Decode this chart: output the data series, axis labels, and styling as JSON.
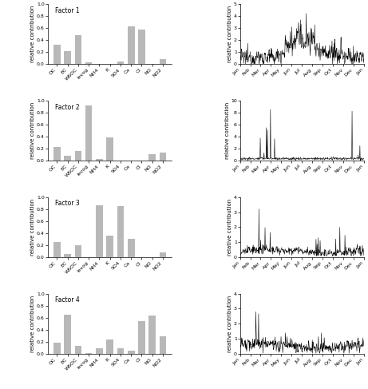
{
  "categories": [
    "OC",
    "EC",
    "WSOC",
    "levog",
    "NH4",
    "K",
    "SO4",
    "Ca",
    "Cl",
    "NO",
    "NO2"
  ],
  "factor1_bars": [
    0.33,
    0.22,
    0.48,
    0.03,
    0.01,
    0.01,
    0.05,
    0.63,
    0.58,
    0.0,
    0.09
  ],
  "factor2_bars": [
    0.23,
    0.08,
    0.16,
    0.92,
    0.03,
    0.39,
    0.01,
    0.01,
    0.01,
    0.11,
    0.14
  ],
  "factor3_bars": [
    0.25,
    0.05,
    0.2,
    0.01,
    0.86,
    0.36,
    0.85,
    0.31,
    0.01,
    0.01,
    0.08
  ],
  "factor4_bars": [
    0.19,
    0.65,
    0.14,
    0.02,
    0.1,
    0.24,
    0.09,
    0.05,
    0.54,
    0.64,
    0.29
  ],
  "bar_ylim": [
    0.0,
    1.0
  ],
  "bar_yticks": [
    0.0,
    0.2,
    0.4,
    0.6,
    0.8,
    1.0
  ],
  "ts1_ylim": [
    0,
    5
  ],
  "ts2_ylim": [
    0,
    10
  ],
  "ts3_ylim": [
    0,
    4
  ],
  "ts4_ylim": [
    0,
    4
  ],
  "ts1_yticks": [
    0,
    1,
    2,
    3,
    4,
    5
  ],
  "ts2_yticks": [
    0,
    2,
    4,
    6,
    8,
    10
  ],
  "ts3_yticks": [
    0,
    1,
    2,
    3,
    4
  ],
  "ts4_yticks": [
    0,
    1,
    2,
    3,
    4
  ],
  "bar_color": "#b8b8b8",
  "line_color": "#000000",
  "bg_color": "#ffffff",
  "factor_labels": [
    "Factor 1",
    "Factor 2",
    "Factor 3",
    "Factor 4"
  ],
  "ts_xlabel_months": [
    "Jan",
    "Feb",
    "Mar",
    "Apr",
    "May",
    "Jun",
    "Jul",
    "Aug",
    "Sep",
    "Oct",
    "Nov",
    "Dec",
    "Jan"
  ],
  "ylabel_bar": "relative contribution",
  "ylabel_ts": "relative contribution",
  "fontsize_tick": 4.5,
  "fontsize_label": 5.0,
  "fontsize_factor": 5.5
}
